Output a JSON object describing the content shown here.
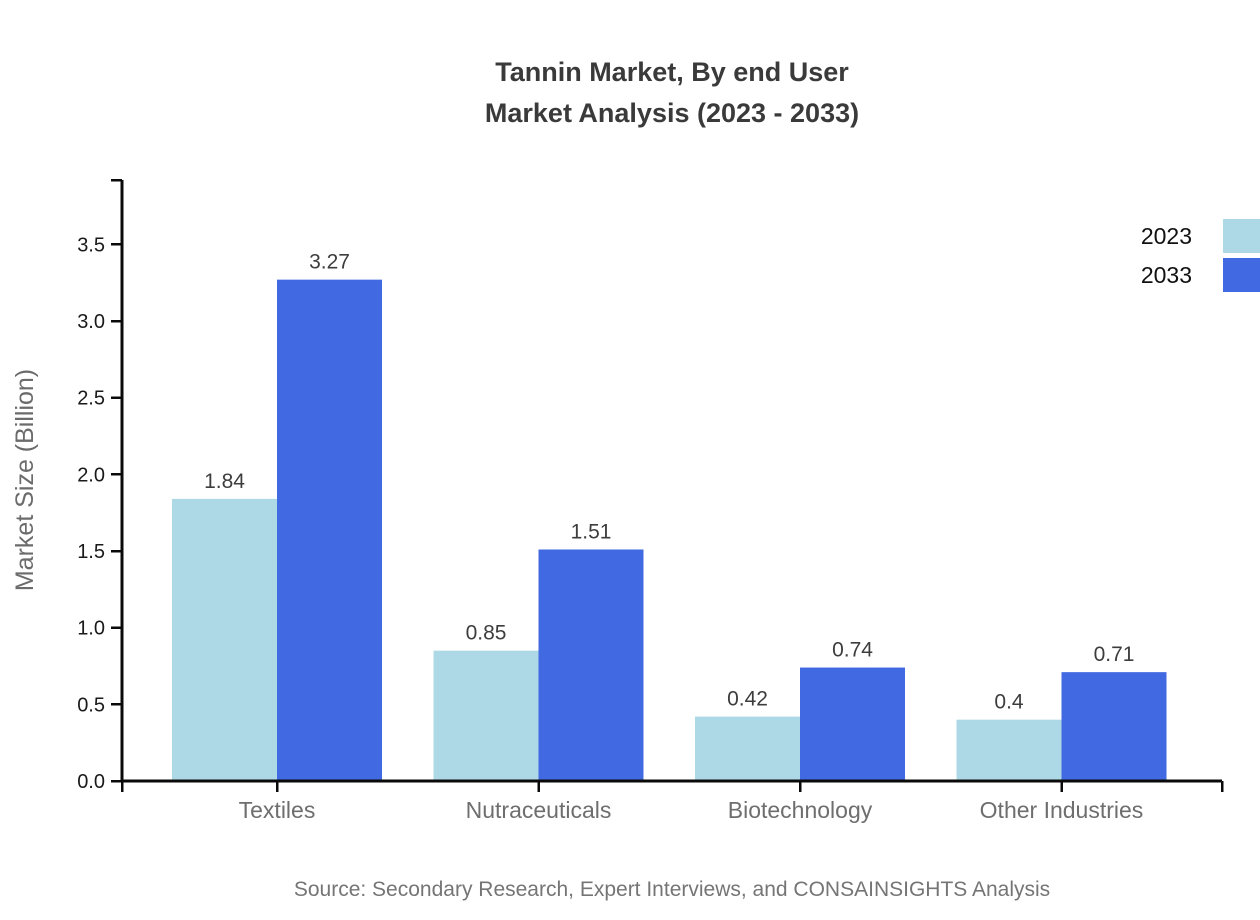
{
  "title": {
    "line1": "Tannin Market, By end User",
    "line2": "Market Analysis (2023 - 2033)"
  },
  "source": "Source: Secondary Research, Expert Interviews, and CONSAINSIGHTS Analysis",
  "legend": {
    "items": [
      {
        "label": "2023",
        "color": "#ADD8E6"
      },
      {
        "label": "2033",
        "color": "#4169E1"
      }
    ]
  },
  "chart_data": {
    "type": "bar",
    "title": "Tannin Market, By end User Market Analysis (2023 - 2033)",
    "categories": [
      "Textiles",
      "Nutraceuticals",
      "Biotechnology",
      "Other Industries"
    ],
    "series": [
      {
        "name": "2023",
        "color": "#ADD8E6",
        "values": [
          1.84,
          0.85,
          0.42,
          0.4
        ]
      },
      {
        "name": "2033",
        "color": "#4169E1",
        "values": [
          3.27,
          1.51,
          0.74,
          0.71
        ]
      }
    ],
    "xlabel": "",
    "ylabel": "Market Size (Billion)",
    "yticks": [
      "0.0",
      "0.5",
      "1.0",
      "1.5",
      "2.0",
      "2.5",
      "3.0",
      "3.5"
    ],
    "ylim": [
      0,
      3.92
    ],
    "grid": false,
    "legend_position": "right",
    "value_labels_shown": true,
    "colors": {
      "axis": "#0a0a0a",
      "ytick_label": "#1a1a1a",
      "xtick_label": "#6e6e6e",
      "value_label": "#3d3d3d",
      "ylabel_text": "#6b6b6b"
    }
  }
}
